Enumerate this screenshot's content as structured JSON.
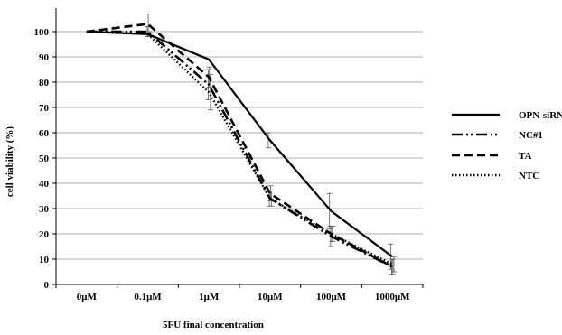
{
  "chart_data": {
    "type": "line",
    "title": "",
    "xlabel": "5FU final concentration",
    "ylabel": "cell viability (%)",
    "categories": [
      "0μM",
      "0.1μM",
      "1μM",
      "10μM",
      "100μM",
      "1000μM"
    ],
    "ylim": [
      0,
      100
    ],
    "yticks": [
      0,
      10,
      20,
      30,
      40,
      50,
      60,
      70,
      80,
      90,
      100
    ],
    "grid": "horizontal",
    "legend_position": "right",
    "series": [
      {
        "name": "OPN-siRNA",
        "values": [
          100,
          99,
          89,
          57,
          29,
          11
        ],
        "errors": [
          0,
          0,
          0,
          3,
          7,
          5
        ],
        "dash": "solid",
        "color": "#000000"
      },
      {
        "name": "NC#1",
        "values": [
          100,
          100,
          79,
          34,
          19,
          7
        ],
        "errors": [
          0,
          2,
          6,
          3,
          4,
          3
        ],
        "dash": "dashdotdot",
        "color": "#000000"
      },
      {
        "name": "TA",
        "values": [
          100,
          103,
          82,
          36,
          20,
          7
        ],
        "errors": [
          0,
          4,
          4,
          3,
          3,
          3
        ],
        "dash": "dashed",
        "color": "#000000"
      },
      {
        "name": "NTC",
        "values": [
          100,
          99,
          76,
          34,
          20,
          8
        ],
        "errors": [
          0,
          1,
          7,
          3,
          3,
          3
        ],
        "dash": "dotted",
        "color": "#000000"
      }
    ]
  }
}
